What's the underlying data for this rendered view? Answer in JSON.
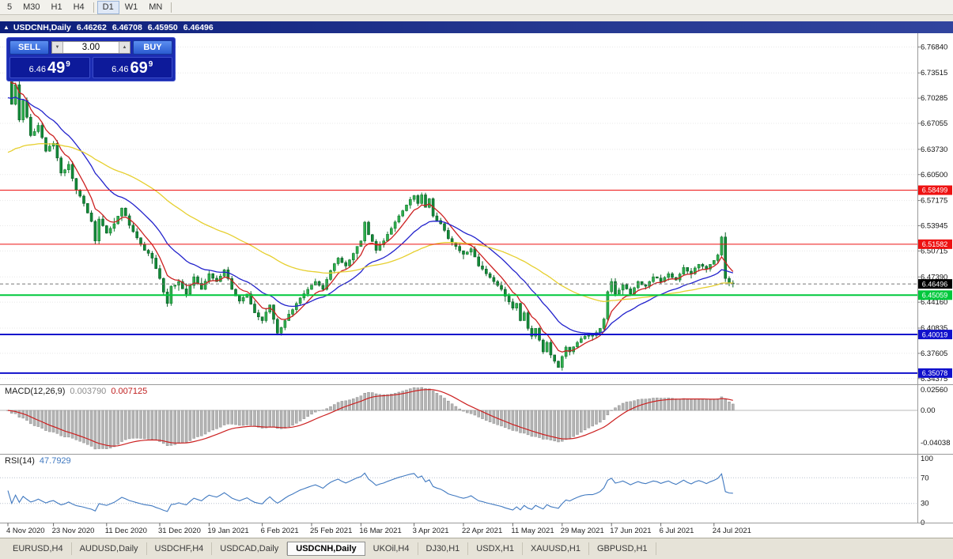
{
  "toolbar": {
    "timeframes": [
      "5",
      "M30",
      "H1",
      "H4",
      "D1",
      "W1",
      "MN"
    ],
    "active": "D1"
  },
  "titlebar": {
    "collapse_icon": "▲",
    "symbol": "USDCNH,Daily",
    "open": "6.46262",
    "high": "6.46708",
    "low": "6.45950",
    "close": "6.46496"
  },
  "trade_panel": {
    "sell_label": "SELL",
    "buy_label": "BUY",
    "lot": "3.00",
    "spinner_down": "▼",
    "spinner_up": "▲",
    "sell_price": {
      "small": "6.46",
      "big": "49",
      "sup": "9"
    },
    "buy_price": {
      "small": "6.46",
      "big": "69",
      "sup": "9"
    }
  },
  "tabs": [
    "EURUSD,H4",
    "AUDUSD,Daily",
    "USDCHF,H4",
    "USDCAD,Daily",
    "USDCNH,Daily",
    "UKOil,H4",
    "DJ30,H1",
    "USDX,H1",
    "XAUUSD,H1",
    "GBPUSD,H1"
  ],
  "active_tab": "USDCNH,Daily",
  "chart_data": {
    "type": "candlestick",
    "symbol": "USDCNH",
    "timeframe": "Daily",
    "ohlc_display": {
      "open": 6.46262,
      "high": 6.46708,
      "low": 6.4595,
      "close": 6.46496
    },
    "price_axis": {
      "min": 6.3395,
      "max": 6.786,
      "ticks": [
        6.7684,
        6.73515,
        6.70285,
        6.67055,
        6.6373,
        6.605,
        6.57175,
        6.53945,
        6.50715,
        6.4739,
        6.4416,
        6.40835,
        6.37605,
        6.34375
      ]
    },
    "hlines": [
      {
        "price": 6.58499,
        "label": "6.58499",
        "color": "#ee1111",
        "width": 1
      },
      {
        "price": 6.51582,
        "label": "6.51582",
        "color": "#ee1111",
        "width": 1
      },
      {
        "price": 6.45059,
        "label": "6.45059",
        "color": "#00c83c",
        "width": 2
      },
      {
        "price": 6.40019,
        "label": "6.40019",
        "color": "#1111cc",
        "width": 2
      },
      {
        "price": 6.35078,
        "label": "6.35078",
        "color": "#1111cc",
        "width": 2
      }
    ],
    "current_price": {
      "value": 6.46496,
      "label": "6.46496",
      "color": "#000000"
    },
    "candle_count": 192,
    "volatility": 0.0032,
    "candle_colors": {
      "up_fill": "#2fae4d",
      "up_stroke": "#157a31",
      "down_fill": "#128a38",
      "down_stroke": "#0b5e25"
    },
    "waypoints": [
      [
        0,
        6.735
      ],
      [
        1,
        6.695
      ],
      [
        2,
        6.72
      ],
      [
        3,
        6.675
      ],
      [
        4,
        6.7
      ],
      [
        6,
        6.655
      ],
      [
        8,
        6.668
      ],
      [
        10,
        6.635
      ],
      [
        12,
        6.645
      ],
      [
        14,
        6.607
      ],
      [
        16,
        6.618
      ],
      [
        18,
        6.585
      ],
      [
        20,
        6.568
      ],
      [
        22,
        6.545
      ],
      [
        23,
        6.52
      ],
      [
        24,
        6.548
      ],
      [
        26,
        6.53
      ],
      [
        28,
        6.542
      ],
      [
        30,
        6.562
      ],
      [
        32,
        6.54
      ],
      [
        34,
        6.524
      ],
      [
        36,
        6.508
      ],
      [
        38,
        6.498
      ],
      [
        40,
        6.472
      ],
      [
        42,
        6.44
      ],
      [
        43,
        6.462
      ],
      [
        45,
        6.468
      ],
      [
        47,
        6.452
      ],
      [
        49,
        6.474
      ],
      [
        51,
        6.458
      ],
      [
        53,
        6.478
      ],
      [
        55,
        6.468
      ],
      [
        57,
        6.483
      ],
      [
        59,
        6.458
      ],
      [
        61,
        6.443
      ],
      [
        63,
        6.452
      ],
      [
        65,
        6.428
      ],
      [
        67,
        6.418
      ],
      [
        69,
        6.438
      ],
      [
        71,
        6.402
      ],
      [
        73,
        6.418
      ],
      [
        75,
        6.432
      ],
      [
        77,
        6.447
      ],
      [
        79,
        6.458
      ],
      [
        81,
        6.468
      ],
      [
        83,
        6.458
      ],
      [
        85,
        6.482
      ],
      [
        87,
        6.498
      ],
      [
        89,
        6.488
      ],
      [
        91,
        6.504
      ],
      [
        93,
        6.52
      ],
      [
        94,
        6.544
      ],
      [
        95,
        6.528
      ],
      [
        97,
        6.508
      ],
      [
        99,
        6.52
      ],
      [
        101,
        6.536
      ],
      [
        103,
        6.552
      ],
      [
        105,
        6.566
      ],
      [
        107,
        6.578
      ],
      [
        108,
        6.568
      ],
      [
        109,
        6.579
      ],
      [
        110,
        6.563
      ],
      [
        111,
        6.574
      ],
      [
        112,
        6.552
      ],
      [
        114,
        6.542
      ],
      [
        116,
        6.523
      ],
      [
        118,
        6.513
      ],
      [
        120,
        6.503
      ],
      [
        122,
        6.51
      ],
      [
        124,
        6.488
      ],
      [
        126,
        6.478
      ],
      [
        128,
        6.468
      ],
      [
        130,
        6.458
      ],
      [
        132,
        6.442
      ],
      [
        133,
        6.434
      ],
      [
        134,
        6.44
      ],
      [
        135,
        6.418
      ],
      [
        136,
        6.428
      ],
      [
        137,
        6.408
      ],
      [
        138,
        6.398
      ],
      [
        139,
        6.408
      ],
      [
        140,
        6.393
      ],
      [
        141,
        6.378
      ],
      [
        142,
        6.39
      ],
      [
        143,
        6.374
      ],
      [
        144,
        6.366
      ],
      [
        145,
        6.358
      ],
      [
        146,
        6.372
      ],
      [
        147,
        6.384
      ],
      [
        148,
        6.378
      ],
      [
        150,
        6.39
      ],
      [
        152,
        6.398
      ],
      [
        154,
        6.399
      ],
      [
        156,
        6.408
      ],
      [
        157,
        6.42
      ],
      [
        158,
        6.455
      ],
      [
        159,
        6.468
      ],
      [
        160,
        6.452
      ],
      [
        162,
        6.464
      ],
      [
        164,
        6.452
      ],
      [
        166,
        6.468
      ],
      [
        168,
        6.462
      ],
      [
        170,
        6.474
      ],
      [
        172,
        6.468
      ],
      [
        174,
        6.478
      ],
      [
        176,
        6.47
      ],
      [
        178,
        6.486
      ],
      [
        180,
        6.478
      ],
      [
        182,
        6.49
      ],
      [
        184,
        6.484
      ],
      [
        185,
        6.49
      ],
      [
        186,
        6.495
      ],
      [
        187,
        6.502
      ],
      [
        188,
        6.525
      ],
      [
        189,
        6.472
      ],
      [
        190,
        6.466
      ],
      [
        191,
        6.465
      ]
    ],
    "moving_averages": [
      {
        "period": 7,
        "color": "#cc2020",
        "seed": 6.73
      },
      {
        "period": 20,
        "color": "#2222cc",
        "seed": 6.7
      },
      {
        "period": 60,
        "color": "#e6cf2e",
        "seed": 6.63
      }
    ],
    "dates": [
      {
        "i": 0,
        "label": "4 Nov 2020"
      },
      {
        "i": 12,
        "label": "23 Nov 2020"
      },
      {
        "i": 26,
        "label": "11 Dec 2020"
      },
      {
        "i": 40,
        "label": "31 Dec 2020"
      },
      {
        "i": 53,
        "label": "19 Jan 2021"
      },
      {
        "i": 67,
        "label": "6 Feb 2021"
      },
      {
        "i": 80,
        "label": "25 Feb 2021"
      },
      {
        "i": 93,
        "label": "16 Mar 2021"
      },
      {
        "i": 107,
        "label": "3 Apr 2021"
      },
      {
        "i": 120,
        "label": "22 Apr 2021"
      },
      {
        "i": 133,
        "label": "11 May 2021"
      },
      {
        "i": 146,
        "label": "29 May 2021"
      },
      {
        "i": 159,
        "label": "17 Jun 2021"
      },
      {
        "i": 172,
        "label": "6 Jul 2021"
      },
      {
        "i": 186,
        "label": "24 Jul 2021"
      }
    ],
    "macd": {
      "name": "MACD(12,26,9)",
      "value_main": "0.003790",
      "value_signal": "0.007125",
      "fast": 12,
      "slow": 26,
      "signal": 9,
      "axis_labels": [
        "0.02560",
        "0.00",
        "-0.04038"
      ],
      "histogram_color": "#b4b4b4",
      "signal_color": "#cc2020"
    },
    "rsi": {
      "name": "RSI(14)",
      "value": "47.7929",
      "period": 14,
      "axis_labels": [
        "100",
        "70",
        "30",
        "0"
      ],
      "levels": [
        70,
        30
      ],
      "line_color": "#4079c0"
    }
  }
}
